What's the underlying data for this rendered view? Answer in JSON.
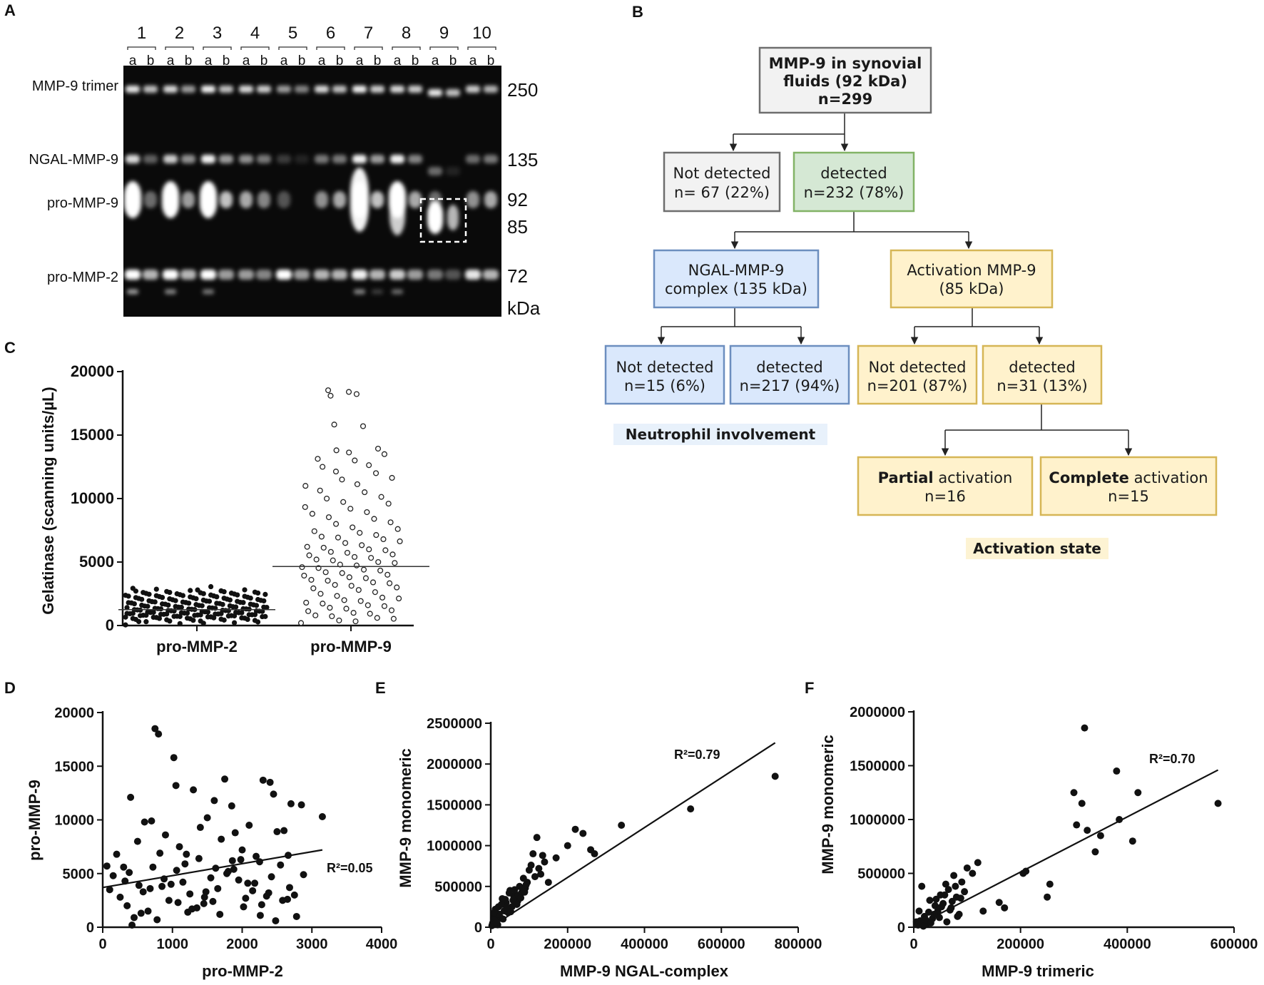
{
  "panels": {
    "A": {
      "letter": "A",
      "lanes": [
        "1",
        "2",
        "3",
        "4",
        "5",
        "6",
        "7",
        "8",
        "9",
        "10"
      ],
      "sublanes": [
        "a",
        "b"
      ],
      "band_labels": [
        "MMP-9 trimer",
        "NGAL-MMP-9",
        "pro-MMP-9",
        "pro-MMP-2"
      ],
      "mw_markers": [
        "250",
        "135",
        "92",
        "85",
        "72",
        "kDa"
      ]
    },
    "B": {
      "letter": "B",
      "root": {
        "line1": "MMP-9 in synovial",
        "line2": "fluids (92 kDa)",
        "line3": "n=299"
      },
      "level1": {
        "not_detected": {
          "line1": "Not detected",
          "line2": "n= 67 (22%)"
        },
        "detected": {
          "line1": "detected",
          "line2": "n=232 (78%)"
        }
      },
      "level2": {
        "ngal": {
          "line1": "NGAL-MMP-9",
          "line2": "complex (135 kDa)"
        },
        "activation": {
          "line1": "Activation MMP-9",
          "line2": "(85 kDa)"
        }
      },
      "level3": {
        "ngal_not": {
          "line1": "Not detected",
          "line2": "n=15 (6%)"
        },
        "ngal_det": {
          "line1": "detected",
          "line2": "n=217 (94%)"
        },
        "act_not": {
          "line1": "Not detected",
          "line2": "n=201 (87%)"
        },
        "act_det": {
          "line1": "detected",
          "line2": "n=31 (13%)"
        }
      },
      "level4": {
        "partial": {
          "bold": "Partial",
          "rest": " activation",
          "n": "n=16"
        },
        "complete": {
          "bold": "Complete",
          "rest": " activation",
          "n": "n=15"
        }
      },
      "label_neutrophil": "Neutrophil involvement",
      "label_activation": "Activation state"
    }
  },
  "chart_data": [
    {
      "panel": "C",
      "type": "scatter",
      "title": "",
      "ylabel": "Gelatinase (scanning units/µL)",
      "xlabel": "",
      "categories": [
        "pro-MMP-2",
        "pro-MMP-9"
      ],
      "ylim": [
        0,
        20000
      ],
      "yticks": [
        "0",
        "5000",
        "10000",
        "15000",
        "20000"
      ],
      "medians": [
        1250,
        4650
      ],
      "series": [
        {
          "name": "pro-MMP-2",
          "marker": "filled",
          "values": [
            250,
            350,
            420,
            500,
            550,
            600,
            650,
            700,
            750,
            780,
            800,
            850,
            880,
            900,
            920,
            950,
            980,
            1000,
            1050,
            1080,
            1100,
            1150,
            1200,
            1230,
            1250,
            1300,
            1350,
            1380,
            1400,
            1450,
            1500,
            1520,
            1550,
            1600,
            1650,
            1700,
            1750,
            1800,
            1850,
            1880,
            1900,
            1950,
            2000,
            2050,
            2100,
            2150,
            2200,
            2250,
            2300,
            2350,
            2400,
            2450,
            2500,
            2550,
            2600,
            2650,
            2700,
            2750,
            2800,
            3000
          ]
        },
        {
          "name": "pro-MMP-9",
          "marker": "open",
          "values": [
            200,
            400,
            600,
            800,
            1000,
            1200,
            1400,
            1600,
            1800,
            2000,
            2200,
            2500,
            2800,
            3000,
            3200,
            3400,
            3600,
            3800,
            4000,
            4200,
            4400,
            4600,
            4800,
            5000,
            5200,
            5400,
            5600,
            5800,
            6000,
            6200,
            6500,
            6800,
            7000,
            7300,
            7600,
            8000,
            8400,
            8800,
            9200,
            9600,
            10000,
            10500,
            11000,
            11500,
            12000,
            12500,
            13000,
            13500,
            13800,
            15700,
            18100,
            18400
          ]
        }
      ]
    },
    {
      "panel": "D",
      "type": "scatter",
      "xlabel": "pro-MMP-2",
      "ylabel": "pro-MMP-9",
      "xlim": [
        0,
        4000
      ],
      "ylim": [
        0,
        20000
      ],
      "xticks": [
        "0",
        "1000",
        "2000",
        "3000",
        "4000"
      ],
      "yticks": [
        "0",
        "5000",
        "10000",
        "15000",
        "20000"
      ],
      "annotation": "R²=0.05",
      "fit": {
        "x": [
          0,
          3150
        ],
        "y": [
          3700,
          7200
        ]
      },
      "x": [
        750,
        800,
        1020,
        1050,
        400,
        1300,
        1600,
        1750,
        1850,
        2300,
        2400,
        2450,
        2700,
        2850,
        3150,
        200,
        300,
        500,
        600,
        700,
        900,
        1100,
        1200,
        1400,
        1500,
        1700,
        1900,
        2000,
        2100,
        2200,
        2500,
        2600,
        100,
        250,
        350,
        450,
        550,
        650,
        850,
        950,
        1150,
        1250,
        1350,
        1450,
        1550,
        1650,
        1800,
        1950,
        2050,
        2150,
        2250,
        2350,
        2550,
        2650,
        2750,
        150,
        380,
        520,
        720,
        880,
        1080,
        1280,
        1480,
        1680,
        1880,
        2080,
        2280,
        2480,
        2680,
        2880,
        60,
        320,
        780,
        1180,
        1580,
        1980,
        2380,
        2780,
        420,
        820,
        1220,
        1620,
        2020,
        2420,
        580,
        980,
        1380,
        1780,
        2180,
        2580,
        680,
        1060,
        1460,
        1860,
        2260,
        2660
      ],
      "y": [
        18500,
        18000,
        15800,
        13200,
        12100,
        12800,
        11800,
        13800,
        11300,
        13700,
        13500,
        12400,
        11500,
        11400,
        10300,
        6800,
        5600,
        8000,
        9800,
        9900,
        8600,
        7500,
        6800,
        9300,
        10200,
        8200,
        8800,
        7200,
        9500,
        6600,
        8900,
        9000,
        3500,
        2800,
        2000,
        900,
        1300,
        1500,
        3800,
        2500,
        4200,
        3100,
        1800,
        2200,
        4600,
        3600,
        5200,
        4400,
        2700,
        3400,
        6100,
        2900,
        5800,
        2600,
        3000,
        4800,
        5100,
        3900,
        5600,
        4500,
        2300,
        1700,
        3300,
        1200,
        5400,
        4100,
        2100,
        600,
        3700,
        4900,
        5700,
        4300,
        700,
        5900,
        2400,
        6300,
        3200,
        1000,
        200,
        6900,
        1400,
        5500,
        1900,
        4700,
        3300,
        4000,
        6400,
        5000,
        4100,
        2500,
        3600,
        5300,
        2800,
        6200,
        1100,
        6700
      ]
    },
    {
      "panel": "E",
      "type": "scatter",
      "xlabel": "MMP-9 NGAL-complex",
      "ylabel": "MMP-9 monomeric",
      "xlim": [
        0,
        800000
      ],
      "ylim": [
        0,
        2500000
      ],
      "xticks": [
        "0",
        "200000",
        "400000",
        "600000",
        "800000"
      ],
      "yticks": [
        "0",
        "500000",
        "1000000",
        "1500000",
        "2000000",
        "2500000"
      ],
      "annotation": "R²=0.79",
      "fit": {
        "x": [
          0,
          740000
        ],
        "y": [
          0,
          2260000
        ]
      },
      "x": [
        5000,
        10000,
        15000,
        20000,
        25000,
        30000,
        35000,
        40000,
        45000,
        50000,
        55000,
        60000,
        65000,
        70000,
        75000,
        80000,
        85000,
        90000,
        95000,
        100000,
        110000,
        120000,
        130000,
        140000,
        150000,
        170000,
        200000,
        220000,
        240000,
        260000,
        270000,
        340000,
        520000,
        740000,
        8000,
        12000,
        18000,
        22000,
        28000,
        32000,
        38000,
        42000,
        48000,
        52000,
        58000,
        62000,
        68000,
        72000,
        78000,
        82000,
        88000,
        92000,
        105000,
        115000,
        125000,
        135000,
        3000,
        6000,
        9000,
        14000
      ],
      "y": [
        50000,
        150000,
        80000,
        250000,
        120000,
        350000,
        200000,
        300000,
        180000,
        450000,
        250000,
        380000,
        400000,
        320000,
        500000,
        420000,
        600000,
        480000,
        550000,
        700000,
        900000,
        1100000,
        650000,
        800000,
        550000,
        850000,
        1000000,
        1200000,
        1150000,
        950000,
        900000,
        1250000,
        1450000,
        1850000,
        100000,
        220000,
        30000,
        160000,
        280000,
        100000,
        340000,
        240000,
        420000,
        190000,
        330000,
        460000,
        280000,
        390000,
        360000,
        480000,
        430000,
        520000,
        760000,
        620000,
        720000,
        880000,
        20000,
        40000,
        180000,
        60000
      ]
    },
    {
      "panel": "F",
      "type": "scatter",
      "xlabel": "MMP-9 trimeric",
      "ylabel": "MMP-9 monomeric",
      "xlim": [
        0,
        600000
      ],
      "ylim": [
        0,
        2000000
      ],
      "xticks": [
        "0",
        "200000",
        "400000",
        "600000"
      ],
      "yticks": [
        "0",
        "500000",
        "1000000",
        "1500000",
        "2000000"
      ],
      "annotation": "R²=0.70",
      "fit": {
        "x": [
          0,
          570000
        ],
        "y": [
          0,
          1460000
        ]
      },
      "x": [
        5000,
        10000,
        15000,
        20000,
        25000,
        30000,
        35000,
        40000,
        45000,
        50000,
        55000,
        60000,
        65000,
        70000,
        75000,
        80000,
        85000,
        90000,
        95000,
        100000,
        110000,
        120000,
        130000,
        160000,
        170000,
        205000,
        210000,
        250000,
        255000,
        300000,
        305000,
        315000,
        320000,
        325000,
        340000,
        350000,
        380000,
        385000,
        410000,
        420000,
        570000,
        8000,
        12000,
        18000,
        22000,
        28000,
        32000,
        38000,
        42000,
        48000,
        52000,
        58000,
        62000,
        68000,
        72000,
        78000,
        82000,
        88000
      ],
      "y": [
        50000,
        150000,
        380000,
        100000,
        30000,
        250000,
        80000,
        200000,
        150000,
        300000,
        220000,
        400000,
        350000,
        180000,
        480000,
        280000,
        120000,
        420000,
        330000,
        550000,
        500000,
        600000,
        150000,
        230000,
        180000,
        500000,
        520000,
        280000,
        400000,
        1250000,
        950000,
        1150000,
        1850000,
        900000,
        700000,
        850000,
        1450000,
        1000000,
        800000,
        1250000,
        1150000,
        20000,
        60000,
        10000,
        70000,
        140000,
        40000,
        120000,
        260000,
        90000,
        190000,
        300000,
        50000,
        160000,
        240000,
        380000,
        100000,
        270000
      ]
    }
  ]
}
